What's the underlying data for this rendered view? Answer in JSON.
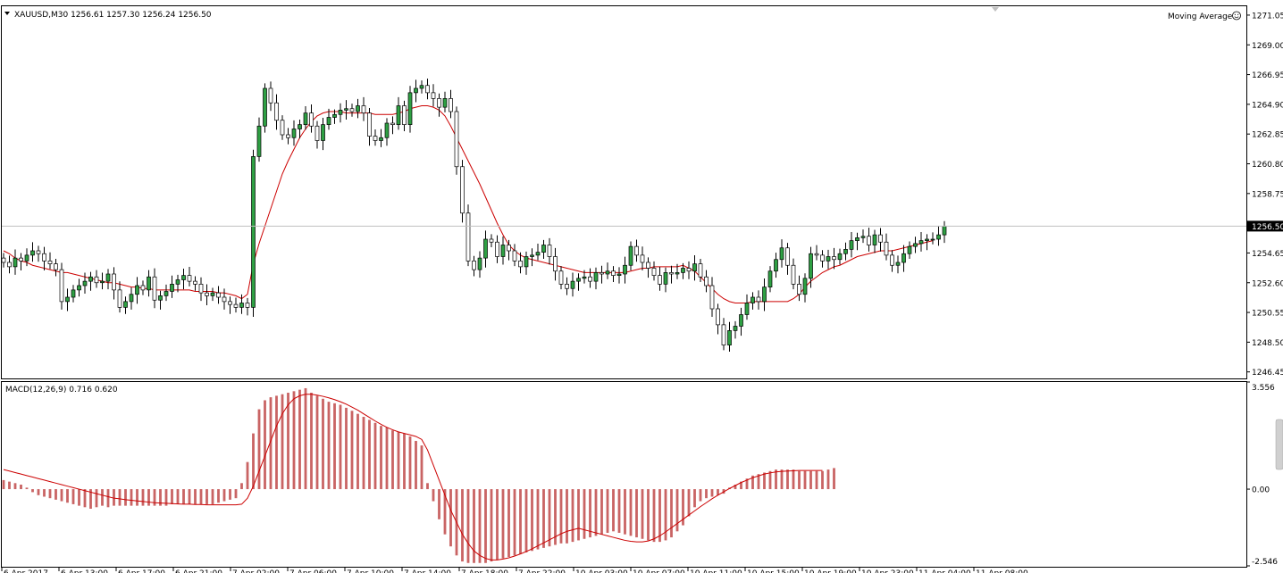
{
  "main_panel": {
    "symbol_info": "XAUUSD,M30  1256.61 1257.30 1256.24 1256.50",
    "indicator_label": "Moving Average",
    "price_badge": "1256.50"
  },
  "macd_panel": {
    "label": "MACD(12,26,9) 0.716 0.620"
  },
  "colors": {
    "up_candle": "#2ea043",
    "candle_outline": "#000000",
    "ma_line": "#cc0000",
    "histogram": "#c96464",
    "signal_line": "#cc0000",
    "price_line": "#c0c0c0"
  },
  "chart_data": [
    {
      "type": "candlestick",
      "symbol": "XAUUSD",
      "timeframe": "M30",
      "ylim": [
        1246.0,
        1271.6
      ],
      "yticks": [
        "1271.05",
        "1269.00",
        "1266.95",
        "1264.90",
        "1262.85",
        "1260.80",
        "1258.75",
        "1256.50",
        "1254.65",
        "1252.60",
        "1250.55",
        "1248.50",
        "1246.45"
      ],
      "current_price": 1256.5,
      "x_labels": [
        "6 Apr 2017",
        "6 Apr 13:00",
        "6 Apr 17:00",
        "6 Apr 21:00",
        "7 Apr 02:00",
        "7 Apr 06:00",
        "7 Apr 10:00",
        "7 Apr 14:00",
        "7 Apr 18:00",
        "7 Apr 22:00",
        "10 Apr 03:00",
        "10 Apr 07:00",
        "10 Apr 11:00",
        "10 Apr 15:00",
        "10 Apr 19:00",
        "10 Apr 23:00",
        "11 Apr 04:00",
        "11 Apr 08:00"
      ],
      "close": [
        1254.0,
        1253.7,
        1254.3,
        1254.1,
        1254.5,
        1254.8,
        1254.6,
        1254.1,
        1253.9,
        1253.5,
        1251.3,
        1251.6,
        1252.1,
        1252.4,
        1252.7,
        1253.0,
        1252.6,
        1252.7,
        1253.2,
        1252.1,
        1250.9,
        1251.3,
        1251.8,
        1252.4,
        1252.1,
        1253.0,
        1251.4,
        1251.7,
        1252.0,
        1252.5,
        1252.8,
        1253.1,
        1252.7,
        1252.5,
        1251.9,
        1251.7,
        1251.9,
        1251.6,
        1251.3,
        1251.1,
        1250.9,
        1251.2,
        1250.9,
        1261.3,
        1263.4,
        1266.0,
        1265.0,
        1263.8,
        1262.8,
        1262.6,
        1263.2,
        1263.5,
        1264.3,
        1263.4,
        1262.4,
        1263.5,
        1264.0,
        1264.2,
        1264.5,
        1264.6,
        1264.4,
        1264.8,
        1264.3,
        1262.7,
        1262.4,
        1262.6,
        1263.6,
        1263.5,
        1264.8,
        1263.5,
        1265.7,
        1266.0,
        1266.2,
        1265.7,
        1265.3,
        1264.7,
        1265.3,
        1264.4,
        1260.6,
        1257.4,
        1254.1,
        1253.5,
        1254.3,
        1255.6,
        1255.4,
        1254.4,
        1255.2,
        1254.8,
        1254.1,
        1253.7,
        1254.4,
        1254.5,
        1254.7,
        1255.2,
        1254.4,
        1253.4,
        1252.5,
        1252.2,
        1252.7,
        1252.9,
        1253.0,
        1252.7,
        1253.3,
        1253.2,
        1253.4,
        1253.1,
        1253.2,
        1253.8,
        1255.1,
        1254.5,
        1254.0,
        1253.6,
        1253.1,
        1252.5,
        1253.3,
        1253.2,
        1253.3,
        1253.6,
        1253.4,
        1253.9,
        1253.0,
        1252.4,
        1250.8,
        1249.7,
        1248.3,
        1249.3,
        1249.6,
        1250.4,
        1251.2,
        1251.6,
        1251.3,
        1252.3,
        1253.4,
        1254.2,
        1255.0,
        1253.8,
        1252.5,
        1251.8,
        1252.9,
        1254.6,
        1254.5,
        1254.1,
        1254.4,
        1254.2,
        1254.6,
        1254.9,
        1255.5,
        1255.7,
        1255.8,
        1255.2,
        1255.9,
        1255.4,
        1254.5,
        1253.8,
        1254.0,
        1254.6,
        1255.1,
        1255.3,
        1255.5,
        1255.6,
        1255.6,
        1255.9,
        1256.5
      ],
      "ma": [
        1254.8,
        1254.6,
        1254.3,
        1254.1,
        1254.0,
        1253.8,
        1253.7,
        1253.6,
        1253.5,
        1253.4,
        1253.3,
        1253.3,
        1253.2,
        1253.1,
        1253.0,
        1252.9,
        1252.8,
        1252.7,
        1252.6,
        1252.6,
        1252.5,
        1252.4,
        1252.3,
        1252.3,
        1252.2,
        1252.2,
        1252.1,
        1252.1,
        1252.1,
        1252.1,
        1252.1,
        1252.1,
        1252.1,
        1252.0,
        1252.0,
        1252.0,
        1252.0,
        1251.9,
        1251.9,
        1251.8,
        1251.7,
        1251.5,
        1251.8,
        1253.9,
        1255.3,
        1256.5,
        1257.7,
        1258.9,
        1260.1,
        1261.0,
        1261.8,
        1262.6,
        1263.2,
        1263.7,
        1264.1,
        1264.3,
        1264.4,
        1264.4,
        1264.4,
        1264.3,
        1264.3,
        1264.3,
        1264.3,
        1264.3,
        1264.2,
        1264.2,
        1264.2,
        1264.2,
        1264.3,
        1264.4,
        1264.6,
        1264.7,
        1264.8,
        1264.8,
        1264.7,
        1264.5,
        1264.1,
        1263.4,
        1262.6,
        1261.8,
        1261.0,
        1260.2,
        1259.4,
        1258.5,
        1257.6,
        1256.7,
        1255.9,
        1255.2,
        1254.8,
        1254.5,
        1254.3,
        1254.2,
        1254.1,
        1254.0,
        1253.9,
        1253.8,
        1253.7,
        1253.6,
        1253.5,
        1253.4,
        1253.3,
        1253.3,
        1253.3,
        1253.3,
        1253.3,
        1253.3,
        1253.3,
        1253.3,
        1253.4,
        1253.5,
        1253.6,
        1253.6,
        1253.7,
        1253.7,
        1253.7,
        1253.7,
        1253.7,
        1253.8,
        1253.6,
        1253.4,
        1253.0,
        1252.6,
        1252.2,
        1251.8,
        1251.5,
        1251.3,
        1251.2,
        1251.2,
        1251.2,
        1251.3,
        1251.3,
        1251.3,
        1251.3,
        1251.3,
        1251.3,
        1251.3,
        1251.5,
        1251.8,
        1252.3,
        1252.7,
        1253.0,
        1253.3,
        1253.5,
        1253.7,
        1253.8,
        1254.0,
        1254.2,
        1254.4,
        1254.5,
        1254.6,
        1254.7,
        1254.8,
        1254.8,
        1254.8,
        1254.9,
        1255.0,
        1255.1,
        1255.2,
        1255.3,
        1255.4,
        1255.5
      ]
    },
    {
      "type": "bar",
      "title": "MACD(12,26,9) 0.716 0.620",
      "ylim": [
        -2.546,
        3.556
      ],
      "yticks": [
        "3.556",
        "0.00",
        "-2.546"
      ],
      "histogram": [
        0.3,
        0.25,
        0.2,
        0.15,
        0.05,
        -0.1,
        -0.2,
        -0.25,
        -0.3,
        -0.35,
        -0.4,
        -0.45,
        -0.5,
        -0.55,
        -0.6,
        -0.65,
        -0.6,
        -0.55,
        -0.6,
        -0.55,
        -0.55,
        -0.55,
        -0.55,
        -0.55,
        -0.55,
        -0.55,
        -0.55,
        -0.55,
        -0.55,
        -0.5,
        -0.5,
        -0.5,
        -0.5,
        -0.5,
        -0.5,
        -0.5,
        -0.5,
        -0.45,
        -0.4,
        -0.35,
        -0.3,
        0.2,
        0.9,
        1.85,
        2.65,
        2.95,
        3.05,
        3.1,
        3.15,
        3.2,
        3.25,
        3.3,
        3.35,
        3.2,
        3.1,
        3.0,
        2.9,
        2.85,
        2.8,
        2.7,
        2.6,
        2.5,
        2.4,
        2.3,
        2.2,
        2.1,
        2.05,
        1.95,
        1.9,
        1.85,
        1.75,
        1.6,
        1.45,
        0.2,
        -0.4,
        -1.0,
        -1.5,
        -1.9,
        -2.2,
        -2.4,
        -2.45,
        -2.45,
        -2.45,
        -2.45,
        -2.4,
        -2.35,
        -2.3,
        -2.25,
        -2.2,
        -2.15,
        -2.1,
        -2.05,
        -2.0,
        -1.95,
        -1.9,
        -1.85,
        -1.8,
        -1.8,
        -1.75,
        -1.7,
        -1.65,
        -1.6,
        -1.55,
        -1.5,
        -1.45,
        -1.4,
        -1.45,
        -1.5,
        -1.55,
        -1.6,
        -1.65,
        -1.7,
        -1.75,
        -1.75,
        -1.7,
        -1.6,
        -1.4,
        -1.2,
        -0.9,
        -0.6,
        -0.4,
        -0.3,
        -0.25,
        -0.2,
        -0.15,
        0.05,
        0.15,
        0.25,
        0.35,
        0.45,
        0.5,
        0.55,
        0.6,
        0.65,
        0.65,
        0.65,
        0.65,
        0.6,
        0.6,
        0.6,
        0.6,
        0.6,
        0.65,
        0.7
      ],
      "signal": [
        0.65,
        0.6,
        0.55,
        0.5,
        0.45,
        0.4,
        0.35,
        0.3,
        0.25,
        0.2,
        0.15,
        0.1,
        0.05,
        0.0,
        -0.05,
        -0.1,
        -0.15,
        -0.2,
        -0.25,
        -0.3,
        -0.32,
        -0.35,
        -0.37,
        -0.39,
        -0.41,
        -0.43,
        -0.45,
        -0.46,
        -0.47,
        -0.48,
        -0.49,
        -0.5,
        -0.5,
        -0.51,
        -0.51,
        -0.52,
        -0.52,
        -0.52,
        -0.52,
        -0.52,
        -0.52,
        -0.5,
        -0.3,
        0.1,
        0.6,
        1.1,
        1.6,
        2.1,
        2.5,
        2.8,
        3.0,
        3.1,
        3.15,
        3.15,
        3.12,
        3.08,
        3.03,
        2.97,
        2.9,
        2.82,
        2.72,
        2.62,
        2.5,
        2.38,
        2.26,
        2.15,
        2.05,
        1.97,
        1.9,
        1.85,
        1.8,
        1.75,
        1.65,
        1.3,
        0.8,
        0.3,
        -0.2,
        -0.7,
        -1.1,
        -1.5,
        -1.8,
        -2.05,
        -2.2,
        -2.3,
        -2.35,
        -2.35,
        -2.32,
        -2.28,
        -2.22,
        -2.15,
        -2.07,
        -1.98,
        -1.88,
        -1.78,
        -1.68,
        -1.58,
        -1.48,
        -1.4,
        -1.35,
        -1.3,
        -1.35,
        -1.4,
        -1.45,
        -1.5,
        -1.55,
        -1.6,
        -1.65,
        -1.7,
        -1.73,
        -1.75,
        -1.75,
        -1.72,
        -1.65,
        -1.55,
        -1.42,
        -1.28,
        -1.14,
        -1.0,
        -0.86,
        -0.72,
        -0.58,
        -0.45,
        -0.32,
        -0.2,
        -0.09,
        0.02,
        0.12,
        0.22,
        0.3,
        0.38,
        0.44,
        0.5,
        0.54,
        0.57,
        0.59,
        0.6,
        0.61,
        0.62,
        0.62,
        0.62,
        0.62,
        0.62
      ]
    }
  ]
}
